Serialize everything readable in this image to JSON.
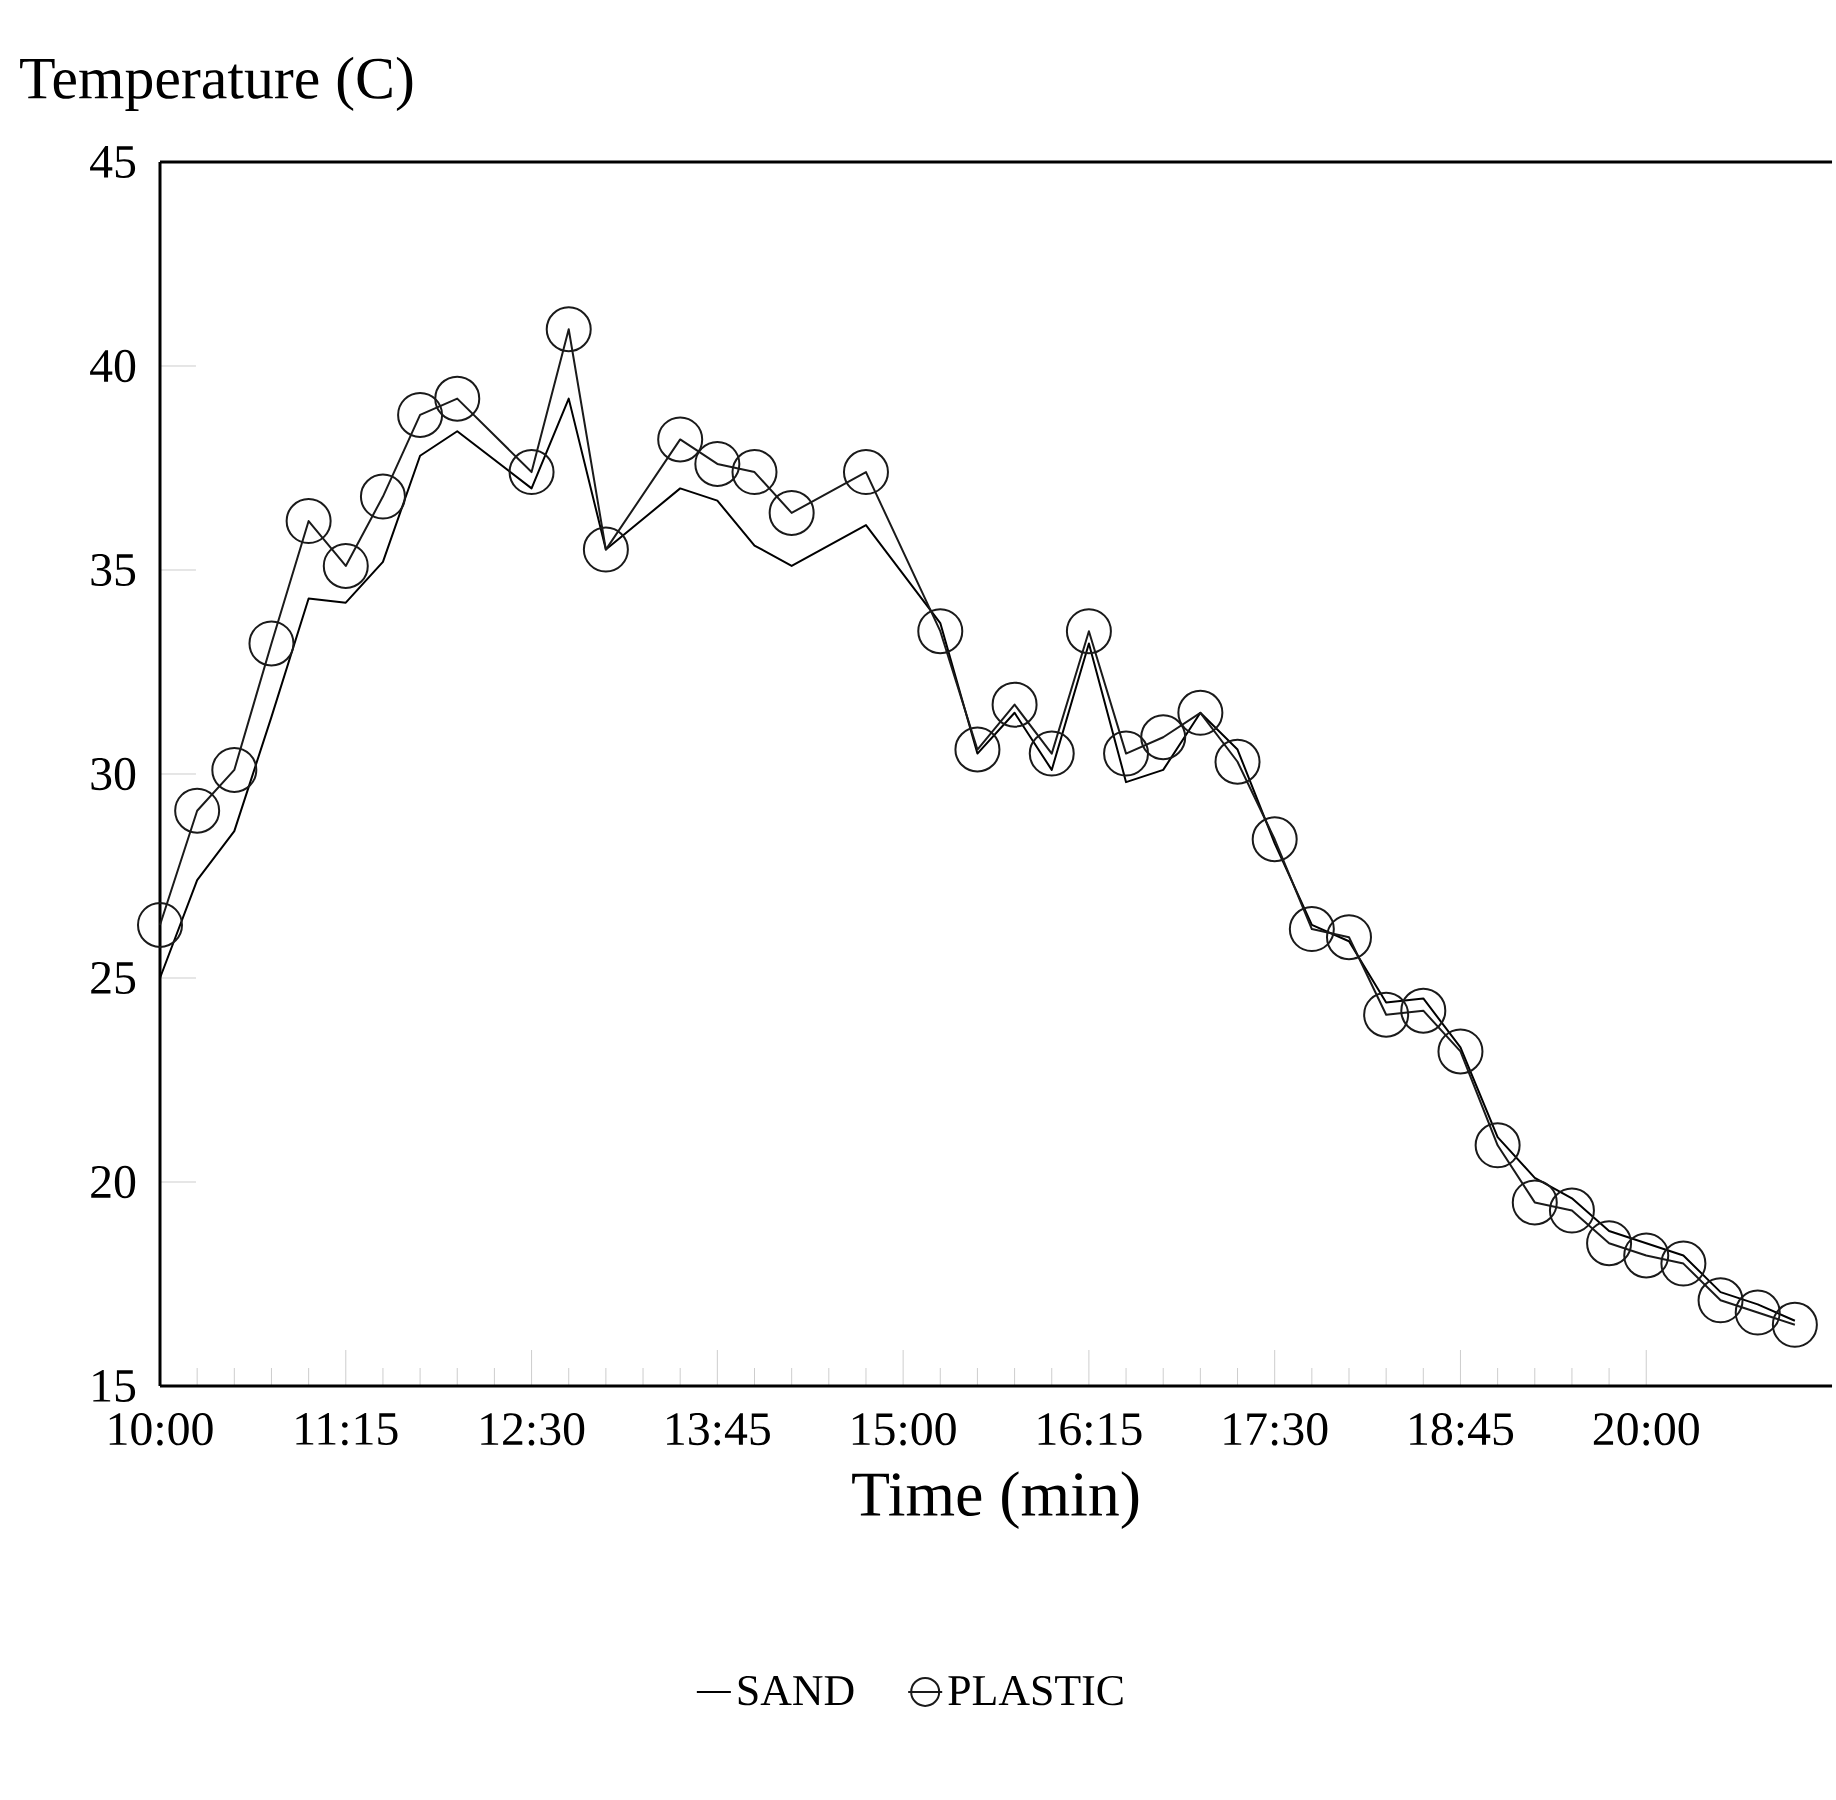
{
  "chart_data": {
    "type": "line",
    "ylabel": "Temperature (C)",
    "xlabel": "Time (min)",
    "xlim": [
      10,
      21.25
    ],
    "ylim": [
      15,
      45
    ],
    "xticks": [
      {
        "value": 10,
        "label": "10:00"
      },
      {
        "value": 11.25,
        "label": "11:15"
      },
      {
        "value": 12.5,
        "label": "12:30"
      },
      {
        "value": 13.75,
        "label": "13:45"
      },
      {
        "value": 15,
        "label": "15:00"
      },
      {
        "value": 16.25,
        "label": "16:15"
      },
      {
        "value": 17.5,
        "label": "17:30"
      },
      {
        "value": 18.75,
        "label": "18:45"
      },
      {
        "value": 20,
        "label": "20:00"
      }
    ],
    "yticks": [
      15,
      20,
      25,
      30,
      35,
      40,
      45
    ],
    "grid": false,
    "legend": "bottom",
    "series": [
      {
        "name": "SAND",
        "color": "#000000",
        "marker": "none",
        "x": [
          10,
          10.25,
          10.5,
          10.75,
          11,
          11.25,
          11.5,
          11.75,
          12,
          12.5,
          12.75,
          13,
          13.5,
          13.75,
          14,
          14.25,
          14.75,
          15.25,
          15.5,
          15.75,
          16,
          16.25,
          16.5,
          16.75,
          17,
          17.25,
          17.5,
          17.75,
          18,
          18.25,
          18.5,
          18.75,
          19,
          19.25,
          19.5,
          19.75,
          20,
          20.25,
          20.5,
          20.75,
          21
        ],
        "values": [
          25.0,
          27.4,
          28.6,
          31.4,
          34.3,
          34.2,
          35.2,
          37.8,
          38.4,
          37.0,
          39.2,
          35.5,
          37.0,
          36.7,
          35.6,
          35.1,
          36.1,
          33.7,
          30.5,
          31.5,
          30.1,
          33.2,
          29.8,
          30.1,
          31.5,
          30.6,
          28.3,
          26.3,
          25.9,
          24.4,
          24.5,
          23.3,
          21.1,
          20.1,
          19.6,
          18.8,
          18.5,
          18.2,
          17.3,
          17.0,
          16.6
        ]
      },
      {
        "name": "PLASTIC",
        "color": "#1a1a1a",
        "marker": "circle",
        "x": [
          10,
          10.25,
          10.5,
          10.75,
          11,
          11.25,
          11.5,
          11.75,
          12,
          12.5,
          12.75,
          13,
          13.5,
          13.75,
          14,
          14.25,
          14.75,
          15.25,
          15.5,
          15.75,
          16,
          16.25,
          16.5,
          16.75,
          17,
          17.25,
          17.5,
          17.75,
          18,
          18.25,
          18.5,
          18.75,
          19,
          19.25,
          19.5,
          19.75,
          20,
          20.25,
          20.5,
          20.75,
          21
        ],
        "values": [
          26.3,
          29.1,
          30.1,
          33.2,
          36.2,
          35.1,
          36.8,
          38.8,
          39.2,
          37.4,
          40.9,
          35.5,
          38.2,
          37.6,
          37.4,
          36.4,
          37.4,
          33.5,
          30.6,
          31.7,
          30.5,
          33.5,
          30.5,
          30.9,
          31.5,
          30.3,
          28.4,
          26.2,
          26.0,
          24.1,
          24.2,
          23.2,
          20.9,
          19.5,
          19.3,
          18.5,
          18.2,
          18.0,
          17.1,
          16.8,
          16.5
        ]
      }
    ]
  }
}
